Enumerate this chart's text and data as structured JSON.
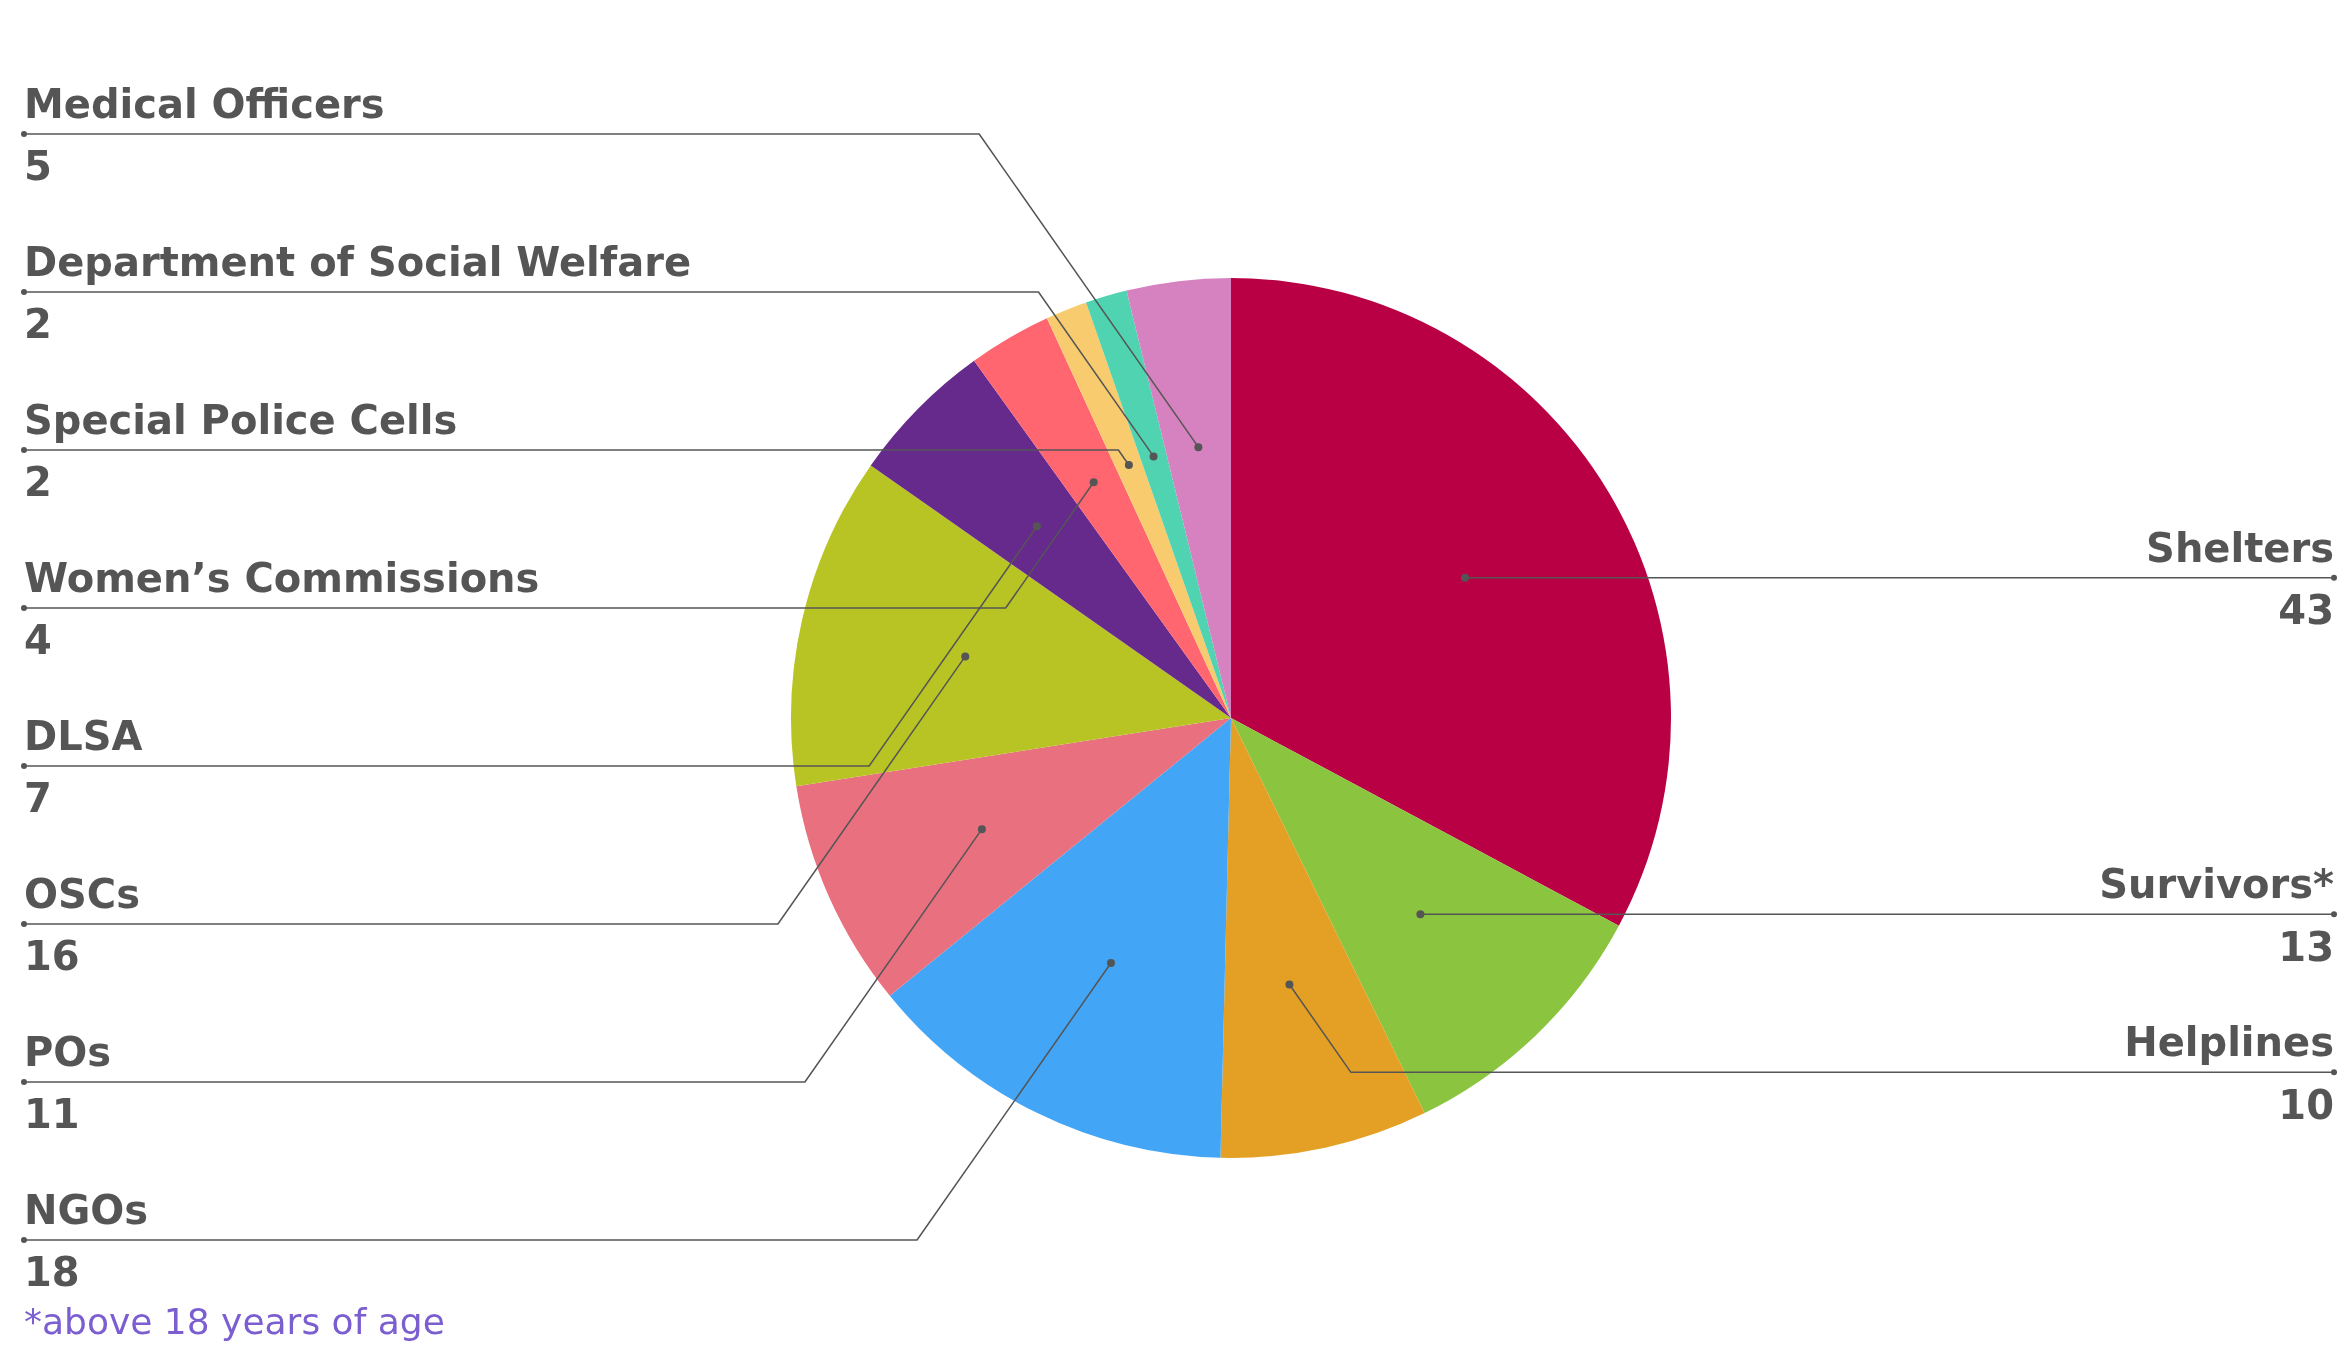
{
  "chart_data": {
    "type": "pie",
    "categories": [
      "Shelters",
      "Survivors*",
      "Helplines",
      "NGOs",
      "POs",
      "OSCs",
      "DLSA",
      "Women’s Commissions",
      "Special Police Cells",
      "Department of Social Welfare",
      "Medical Officers"
    ],
    "values": [
      43,
      13,
      10,
      18,
      11,
      16,
      7,
      4,
      2,
      2,
      5
    ],
    "colors": [
      "#b90044",
      "#8bc43f",
      "#e4a024",
      "#42a5f5",
      "#e9707e",
      "#b8c424",
      "#662a8c",
      "#ff6670",
      "#f8cb6e",
      "#4fd3b0",
      "#d682c0"
    ],
    "data_labels": true,
    "annotations": [
      "*above 18 years of age"
    ]
  }
}
